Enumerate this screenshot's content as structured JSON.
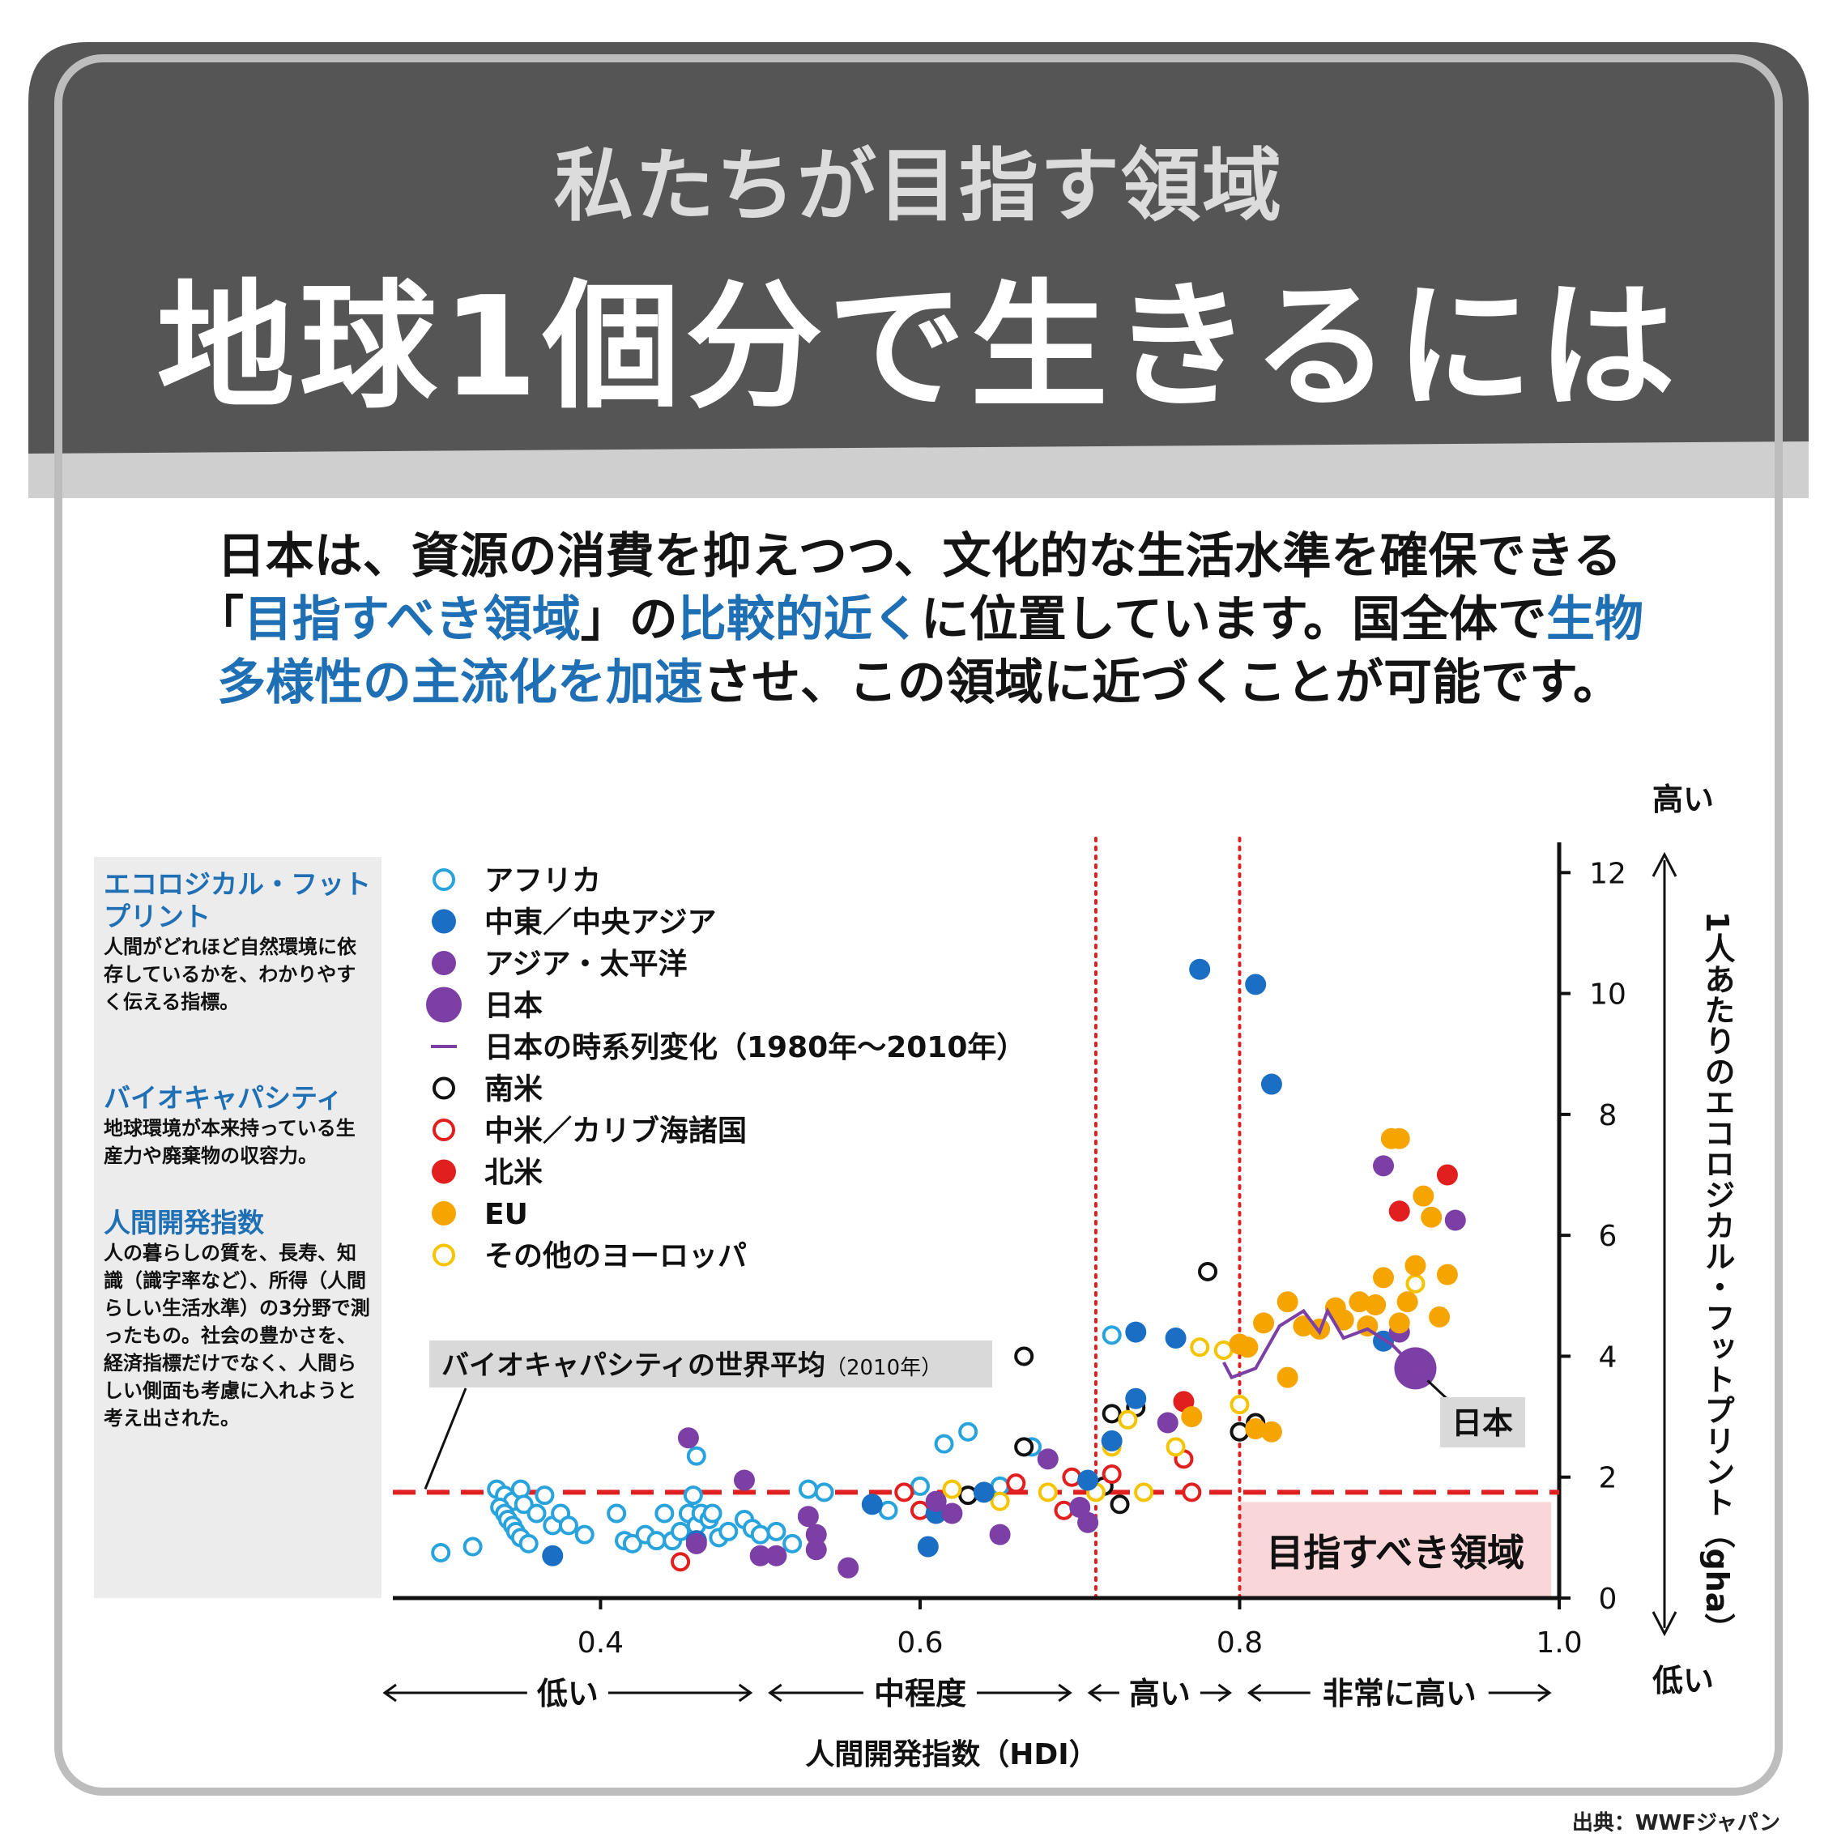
{
  "header": {
    "subtitle": "私たちが目指す領域",
    "title": "地球1個分で生きるには"
  },
  "intro": {
    "line1": "日本は、資源の消費を抑えつつ、文化的な生活水準を確保できる",
    "line2_a": "「",
    "line2_b": "目指すべき領域",
    "line2_c": "」の",
    "line2_d": "比較的近く",
    "line2_e": "に位置しています。国全体で",
    "line2_f": "生物",
    "line3_a": "多様性の主流化を加速",
    "line3_b": "させ、この領域に近づくことが可能です。",
    "highlight_color": "#1f6fb5"
  },
  "sidebar": {
    "items": [
      {
        "title": "エコロジカル・フットプリント",
        "desc": "人間がどれほど自然環境に依存しているかを、わかりやすく伝える指標。"
      },
      {
        "title": "バイオキャパシティ",
        "desc": "地球環境が本来持っている生産力や廃棄物の収容力。"
      },
      {
        "title": "人間開発指数",
        "desc": "人の暮らしの質を、長寿、知識（識字率など）、所得（人間らしい生活水準）の3分野で測ったもの。社会の豊かさを、経済指標だけでなく、人間らしい側面も考慮に入れようと考え出された。"
      }
    ]
  },
  "source": "出典：WWFジャパン",
  "chart_data": {
    "type": "scatter",
    "xlabel": "人間開発指数（HDI）",
    "ylabel": "1人あたりのエコロジカル・フットプリント（gha）",
    "xlim": [
      0.27,
      1.0
    ],
    "ylim": [
      0,
      12.5
    ],
    "xticks": [
      "0.4",
      "0.6",
      "0.8",
      "1.0"
    ],
    "xtick_values": [
      0.4,
      0.6,
      0.8,
      1.0
    ],
    "yticks": [
      "0",
      "2",
      "4",
      "6",
      "8",
      "10",
      "12"
    ],
    "ytick_values": [
      0,
      2,
      4,
      6,
      8,
      10,
      12
    ],
    "y_high_label": "高い",
    "y_low_label": "低い",
    "hdi_categories": [
      {
        "label": "低い",
        "range": [
          0.27,
          0.5
        ]
      },
      {
        "label": "中程度",
        "range": [
          0.5,
          0.7
        ]
      },
      {
        "label": "高い",
        "range": [
          0.7,
          0.8
        ]
      },
      {
        "label": "非常に高い",
        "range": [
          0.8,
          1.0
        ]
      }
    ],
    "hdi_thresholds": [
      0.71,
      0.8
    ],
    "biocapacity_line": {
      "value": 1.75,
      "label": "バイオキャパシティの世界平均",
      "label_note": "（2010年）"
    },
    "target_region": {
      "label": "目指すべき領域",
      "x": [
        0.8,
        0.995
      ],
      "y": [
        0,
        1.75
      ]
    },
    "japan_label": "日本",
    "colors": {
      "africa": "#29a3dc",
      "mideast": "#1a6fc4",
      "asia": "#7b3fa6",
      "japan": "#7b3fa6",
      "samerica": "#111111",
      "camerica": "#e21f1f",
      "namerica": "#e21f1f",
      "eu": "#f5a400",
      "oeurope": "#f5c400",
      "threshold": "#e02020",
      "target_fill": "#f9d6d8"
    },
    "series": [
      {
        "key": "africa",
        "name": "アフリカ",
        "marker": "open",
        "points": [
          [
            0.3,
            0.75
          ],
          [
            0.32,
            0.85
          ],
          [
            0.335,
            1.8
          ],
          [
            0.34,
            1.7
          ],
          [
            0.345,
            1.6
          ],
          [
            0.35,
            1.8
          ],
          [
            0.352,
            1.55
          ],
          [
            0.337,
            1.5
          ],
          [
            0.34,
            1.4
          ],
          [
            0.342,
            1.3
          ],
          [
            0.345,
            1.2
          ],
          [
            0.347,
            1.1
          ],
          [
            0.35,
            1.0
          ],
          [
            0.355,
            0.9
          ],
          [
            0.36,
            1.4
          ],
          [
            0.365,
            1.7
          ],
          [
            0.37,
            1.2
          ],
          [
            0.375,
            1.4
          ],
          [
            0.38,
            1.2
          ],
          [
            0.39,
            1.05
          ],
          [
            0.41,
            1.4
          ],
          [
            0.415,
            0.95
          ],
          [
            0.42,
            0.9
          ],
          [
            0.428,
            1.05
          ],
          [
            0.435,
            0.95
          ],
          [
            0.44,
            1.4
          ],
          [
            0.445,
            0.95
          ],
          [
            0.45,
            1.1
          ],
          [
            0.455,
            1.4
          ],
          [
            0.458,
            1.7
          ],
          [
            0.46,
            1.2
          ],
          [
            0.463,
            1.4
          ],
          [
            0.468,
            1.3
          ],
          [
            0.47,
            1.4
          ],
          [
            0.474,
            1.0
          ],
          [
            0.48,
            1.1
          ],
          [
            0.49,
            1.3
          ],
          [
            0.495,
            1.15
          ],
          [
            0.5,
            1.05
          ],
          [
            0.51,
            1.1
          ],
          [
            0.52,
            0.9
          ],
          [
            0.53,
            1.8
          ],
          [
            0.54,
            1.75
          ],
          [
            0.58,
            1.45
          ],
          [
            0.6,
            1.85
          ],
          [
            0.615,
            2.55
          ],
          [
            0.63,
            2.75
          ],
          [
            0.65,
            1.85
          ],
          [
            0.67,
            2.5
          ],
          [
            0.46,
            2.35
          ],
          [
            0.72,
            4.35
          ]
        ]
      },
      {
        "key": "mideast",
        "name": "中東／中央アジア",
        "marker": "filled",
        "points": [
          [
            0.37,
            0.7
          ],
          [
            0.46,
            0.95
          ],
          [
            0.57,
            1.55
          ],
          [
            0.605,
            0.85
          ],
          [
            0.61,
            1.4
          ],
          [
            0.64,
            1.75
          ],
          [
            0.705,
            1.95
          ],
          [
            0.72,
            2.6
          ],
          [
            0.735,
            3.3
          ],
          [
            0.735,
            4.4
          ],
          [
            0.76,
            4.3
          ],
          [
            0.775,
            10.4
          ],
          [
            0.81,
            10.15
          ],
          [
            0.82,
            8.5
          ],
          [
            0.89,
            4.25
          ]
        ]
      },
      {
        "key": "asia",
        "name": "アジア・太平洋",
        "marker": "filled",
        "points": [
          [
            0.455,
            2.65
          ],
          [
            0.46,
            0.9
          ],
          [
            0.49,
            1.95
          ],
          [
            0.5,
            0.7
          ],
          [
            0.51,
            0.7
          ],
          [
            0.53,
            1.35
          ],
          [
            0.535,
            1.05
          ],
          [
            0.535,
            0.8
          ],
          [
            0.555,
            0.5
          ],
          [
            0.61,
            1.6
          ],
          [
            0.62,
            1.4
          ],
          [
            0.65,
            1.05
          ],
          [
            0.68,
            2.3
          ],
          [
            0.7,
            1.5
          ],
          [
            0.705,
            1.25
          ],
          [
            0.755,
            2.9
          ],
          [
            0.89,
            7.15
          ],
          [
            0.9,
            4.4
          ],
          [
            0.935,
            6.25
          ]
        ]
      },
      {
        "key": "japan",
        "name": "日本",
        "marker": "big",
        "points": [
          [
            0.91,
            3.8
          ]
        ]
      },
      {
        "key": "japan_ts",
        "name": "日本の時系列変化（1980年～2010年）",
        "marker": "line",
        "points": [
          [
            0.79,
            3.9
          ],
          [
            0.795,
            3.65
          ],
          [
            0.81,
            3.8
          ],
          [
            0.825,
            4.5
          ],
          [
            0.84,
            4.75
          ],
          [
            0.85,
            4.4
          ],
          [
            0.855,
            4.75
          ],
          [
            0.865,
            4.3
          ],
          [
            0.88,
            4.45
          ],
          [
            0.895,
            4.2
          ],
          [
            0.91,
            3.8
          ]
        ]
      },
      {
        "key": "samerica",
        "name": "南米",
        "marker": "open",
        "points": [
          [
            0.63,
            1.7
          ],
          [
            0.665,
            2.5
          ],
          [
            0.665,
            4.0
          ],
          [
            0.71,
            1.8
          ],
          [
            0.715,
            1.85
          ],
          [
            0.72,
            3.05
          ],
          [
            0.725,
            1.55
          ],
          [
            0.735,
            3.15
          ],
          [
            0.78,
            5.4
          ],
          [
            0.8,
            2.75
          ],
          [
            0.81,
            2.9
          ]
        ]
      },
      {
        "key": "camerica",
        "name": "中米／カリブ海諸国",
        "marker": "open",
        "points": [
          [
            0.45,
            0.6
          ],
          [
            0.59,
            1.75
          ],
          [
            0.6,
            1.45
          ],
          [
            0.66,
            1.9
          ],
          [
            0.69,
            1.45
          ],
          [
            0.695,
            2.0
          ],
          [
            0.72,
            2.05
          ],
          [
            0.765,
            2.3
          ],
          [
            0.77,
            1.75
          ]
        ]
      },
      {
        "key": "namerica",
        "name": "北米",
        "marker": "filled",
        "points": [
          [
            0.765,
            3.25
          ],
          [
            0.9,
            6.4
          ],
          [
            0.93,
            7.0
          ]
        ]
      },
      {
        "key": "eu",
        "name": "EU",
        "marker": "filled",
        "points": [
          [
            0.77,
            3.0
          ],
          [
            0.8,
            4.2
          ],
          [
            0.805,
            4.15
          ],
          [
            0.81,
            2.8
          ],
          [
            0.815,
            4.55
          ],
          [
            0.82,
            2.75
          ],
          [
            0.83,
            3.65
          ],
          [
            0.83,
            4.9
          ],
          [
            0.84,
            4.5
          ],
          [
            0.85,
            4.45
          ],
          [
            0.86,
            4.8
          ],
          [
            0.865,
            4.6
          ],
          [
            0.875,
            4.9
          ],
          [
            0.88,
            4.5
          ],
          [
            0.885,
            4.85
          ],
          [
            0.89,
            5.3
          ],
          [
            0.895,
            7.6
          ],
          [
            0.9,
            7.6
          ],
          [
            0.9,
            4.55
          ],
          [
            0.905,
            4.9
          ],
          [
            0.91,
            5.5
          ],
          [
            0.915,
            6.65
          ],
          [
            0.92,
            6.3
          ],
          [
            0.925,
            4.65
          ],
          [
            0.93,
            5.35
          ]
        ]
      },
      {
        "key": "oeurope",
        "name": "その他のヨーロッパ",
        "marker": "open",
        "points": [
          [
            0.62,
            1.8
          ],
          [
            0.65,
            1.6
          ],
          [
            0.68,
            1.75
          ],
          [
            0.71,
            1.75
          ],
          [
            0.72,
            2.5
          ],
          [
            0.73,
            2.95
          ],
          [
            0.74,
            1.75
          ],
          [
            0.76,
            2.5
          ],
          [
            0.775,
            4.15
          ],
          [
            0.79,
            4.1
          ],
          [
            0.8,
            3.2
          ],
          [
            0.91,
            5.2
          ]
        ]
      }
    ]
  }
}
